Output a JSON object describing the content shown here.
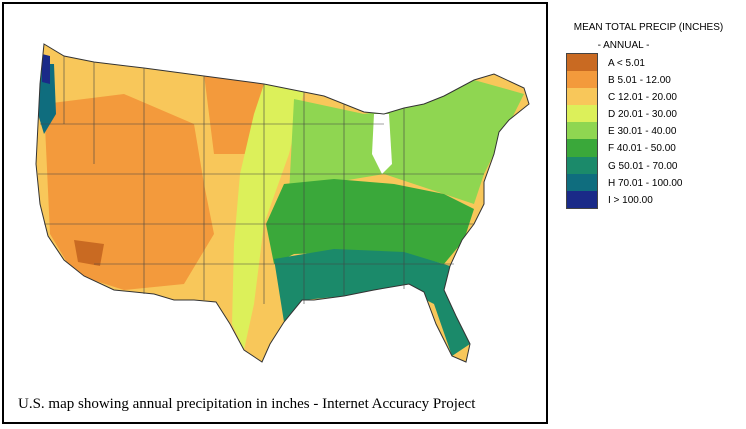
{
  "caption": "U.S. map showing annual precipitation in inches  -  Internet Accuracy Project",
  "legend": {
    "title": "MEAN TOTAL PRECIP (INCHES)",
    "subtitle": "- ANNUAL -",
    "classes": [
      {
        "label": "A < 5.01",
        "color": "#c96a22"
      },
      {
        "label": "B 5.01 - 12.00",
        "color": "#f39a3c"
      },
      {
        "label": "C 12.01 - 20.00",
        "color": "#f8c75a"
      },
      {
        "label": "D 20.01 - 30.00",
        "color": "#dcf05a"
      },
      {
        "label": "E 30.01 - 40.00",
        "color": "#8fd651"
      },
      {
        "label": "F 40.01 - 50.00",
        "color": "#3aa83a"
      },
      {
        "label": "G 50.01 - 70.00",
        "color": "#1b8a6a"
      },
      {
        "label": "H 70.01 - 100.00",
        "color": "#0f6d7e"
      },
      {
        "label": "I > 100.00",
        "color": "#1a2a88"
      }
    ]
  }
}
